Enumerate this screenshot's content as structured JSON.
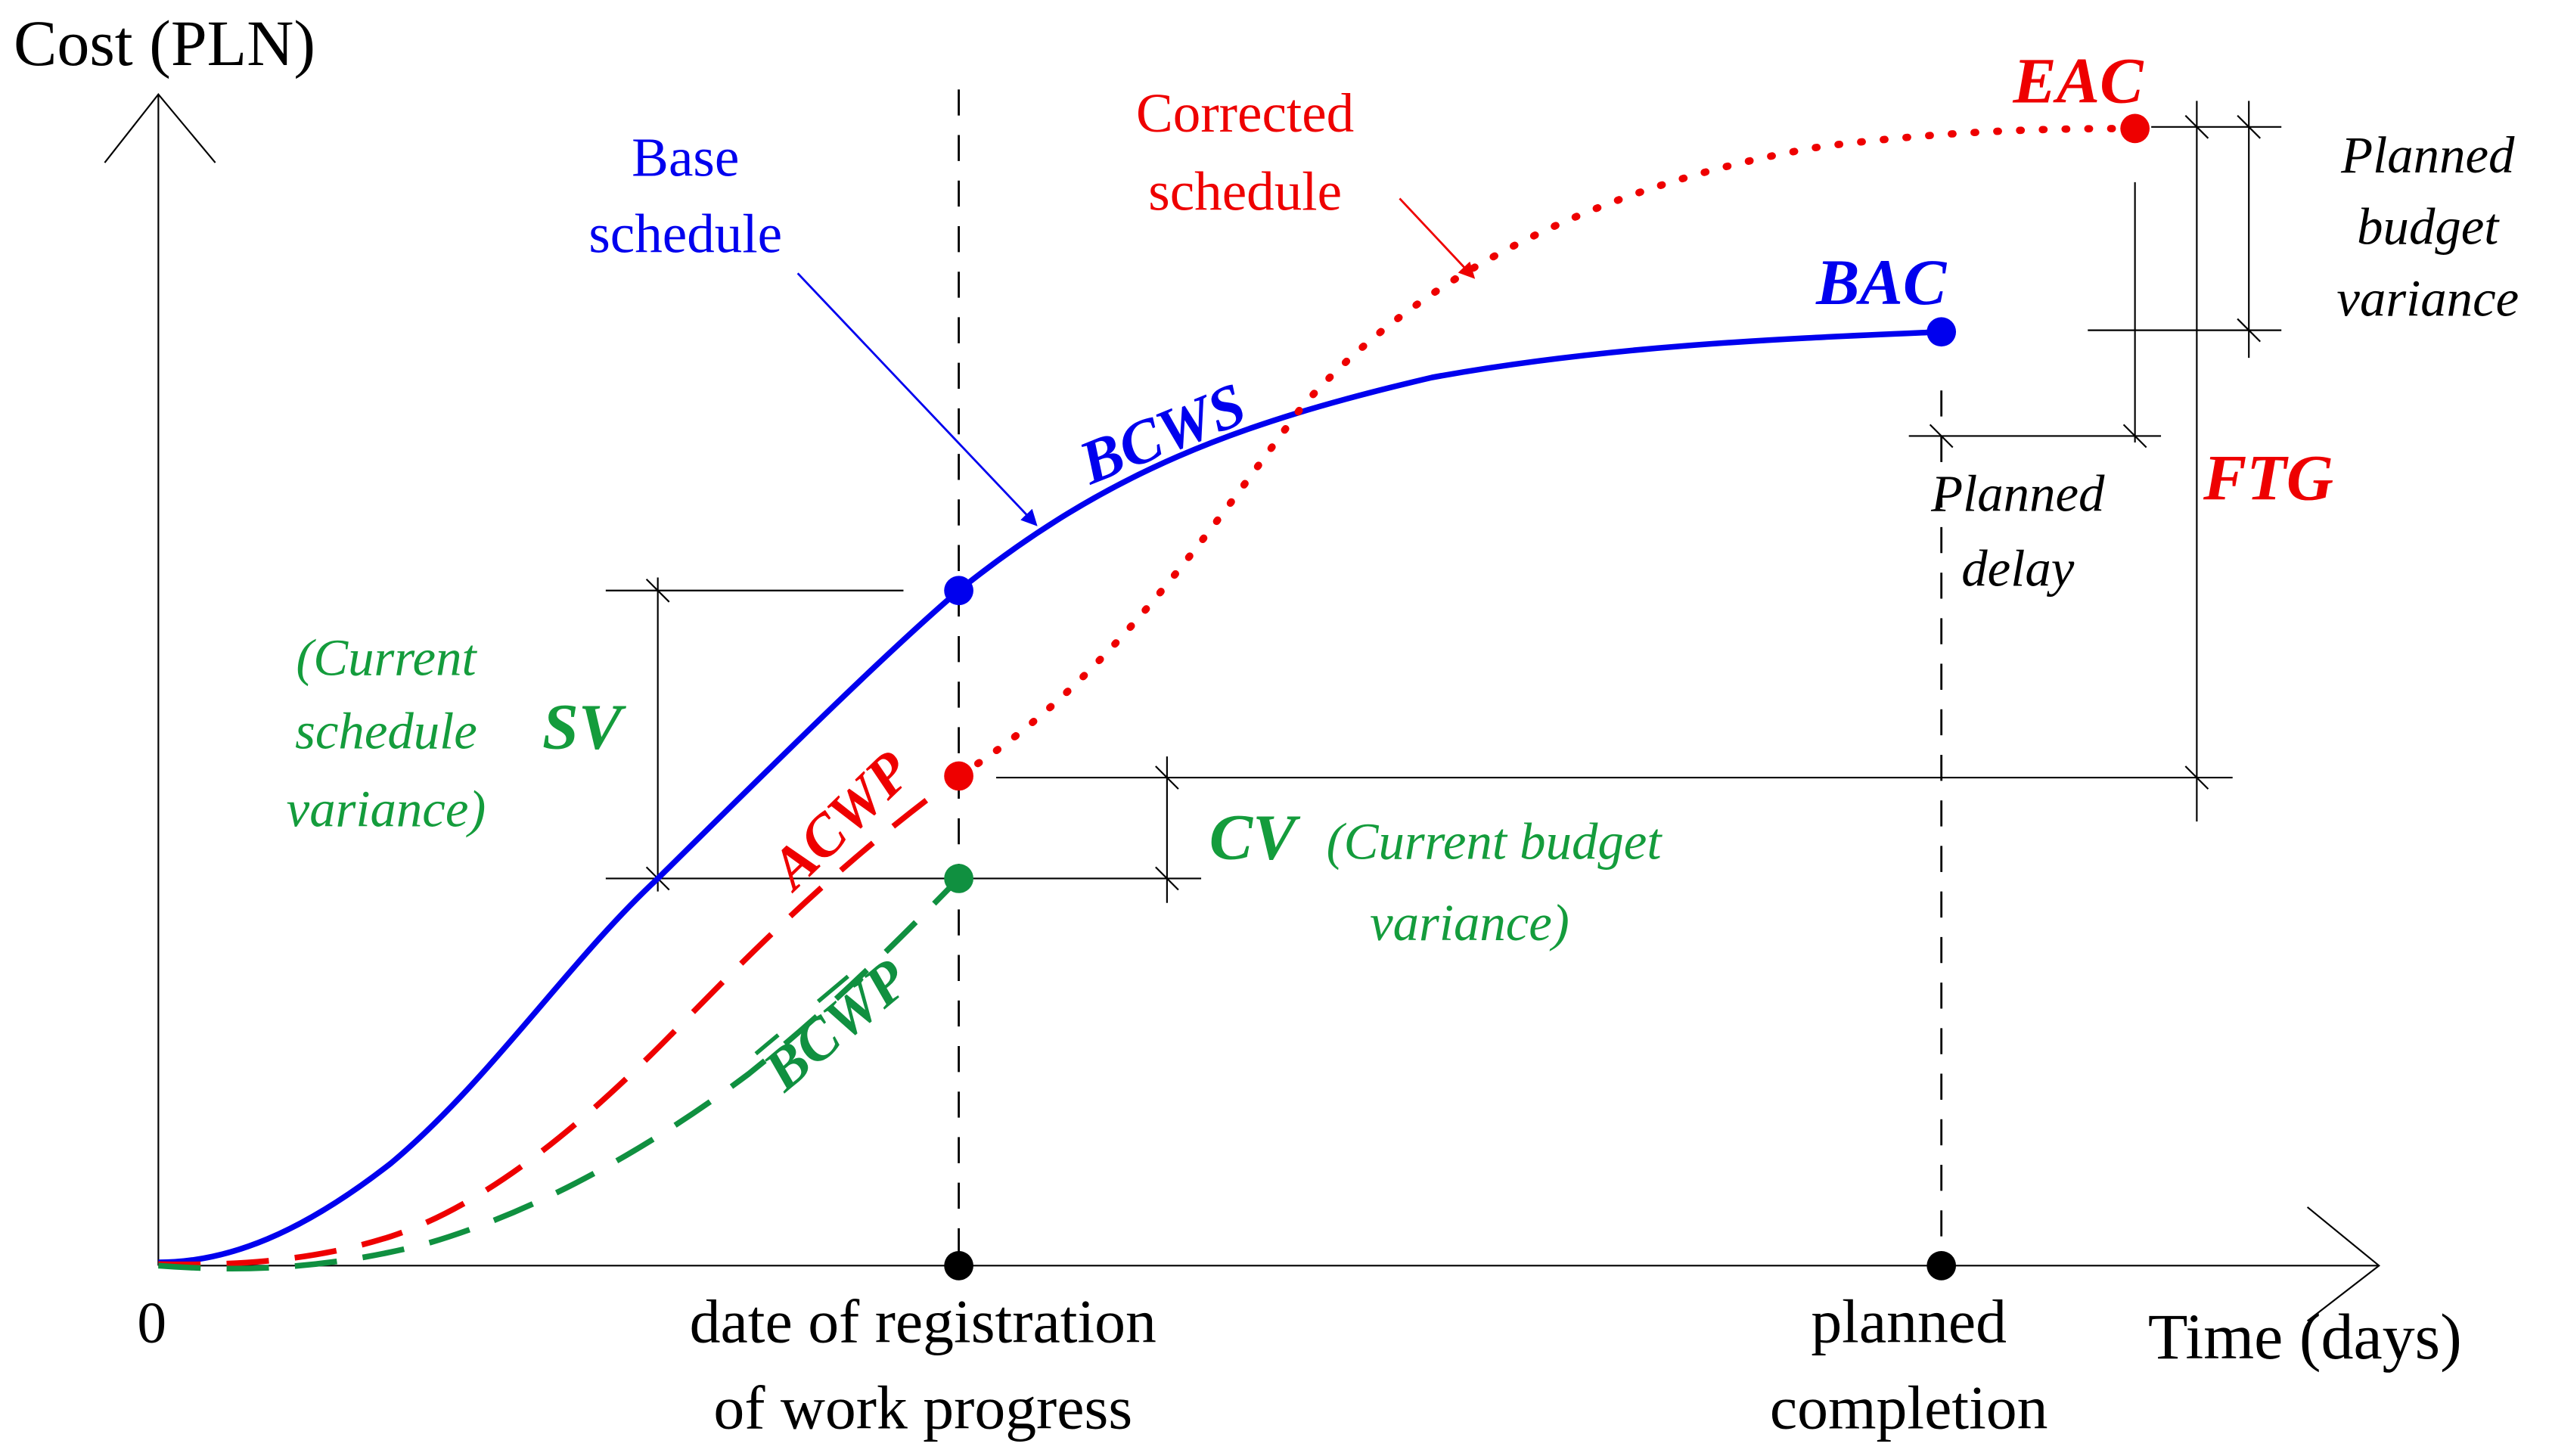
{
  "axes": {
    "y_label": "Cost (PLN)",
    "x_label": "Time (days)",
    "origin": "0"
  },
  "milestones": {
    "registration_line1": "date of registration",
    "registration_line2": "of work progress",
    "completion_line1": "planned",
    "completion_line2": "completion"
  },
  "curves": {
    "bcws": "BCWS",
    "acwp": "ACWP",
    "bcwp": "BCWP",
    "bac": "BAC",
    "eac": "EAC"
  },
  "annotations": {
    "base_line1": "Base",
    "base_line2": "schedule",
    "corrected_line1": "Corrected",
    "corrected_line2": "schedule",
    "sv": "SV",
    "sv_desc_line1": "(Current",
    "sv_desc_line2": "schedule",
    "sv_desc_line3": "variance)",
    "cv": "CV",
    "cv_desc_line1": "(Current budget",
    "cv_desc_line2": "variance)",
    "ftg": "FTG",
    "planned_delay_line1": "Planned",
    "planned_delay_line2": "delay",
    "pbv_line1": "Planned",
    "pbv_line2": "budget",
    "pbv_line3": "variance"
  },
  "colors": {
    "bcws": "#0000ee",
    "acwp": "#ee0000",
    "bcwp": "#109040",
    "text_green": "#149c3c",
    "axis": "#000000"
  }
}
